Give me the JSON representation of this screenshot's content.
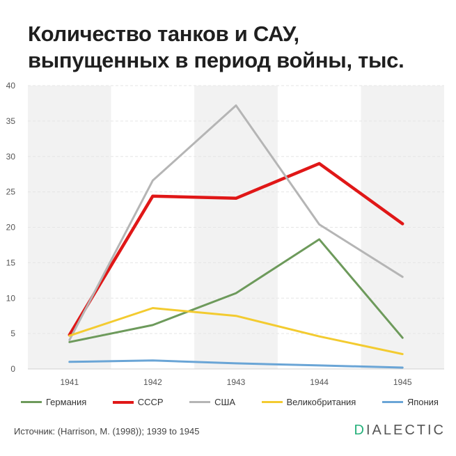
{
  "title": {
    "line1": "Количество танков и САУ,",
    "line2": "выпущенных в период войны, тыс."
  },
  "chart_data": {
    "type": "line",
    "x": [
      "1941",
      "1942",
      "1943",
      "1944",
      "1945"
    ],
    "ylim": [
      0,
      40
    ],
    "yticks": [
      "0",
      "5",
      "10",
      "15",
      "20",
      "25",
      "30",
      "35",
      "40"
    ],
    "grid": true,
    "legend": "bottom",
    "series": [
      {
        "name": "Германия",
        "color": "#6d9a5b",
        "values": [
          3.8,
          6.2,
          10.7,
          18.3,
          4.4
        ]
      },
      {
        "name": "СССР",
        "color": "#e01717",
        "values": [
          4.8,
          24.4,
          24.1,
          29.0,
          20.5
        ]
      },
      {
        "name": "США",
        "color": "#b5b5b5",
        "values": [
          4.1,
          26.6,
          37.2,
          20.4,
          13.0
        ]
      },
      {
        "name": "Великобритания",
        "color": "#f3cb30",
        "values": [
          4.7,
          8.6,
          7.5,
          4.6,
          2.1
        ]
      },
      {
        "name": "Япония",
        "color": "#6aa5d6",
        "values": [
          1.0,
          1.2,
          0.8,
          0.5,
          0.2
        ]
      }
    ]
  },
  "source": "Источник: (Harrison, M. (1998)); 1939 to 1945",
  "logo": {
    "first": "D",
    "rest": "IALECTIC"
  },
  "colors": {
    "band": "#f2f2f2",
    "grid": "#e5e5e5",
    "axis_text": "#555555",
    "logo_accent": "#25b07a"
  }
}
